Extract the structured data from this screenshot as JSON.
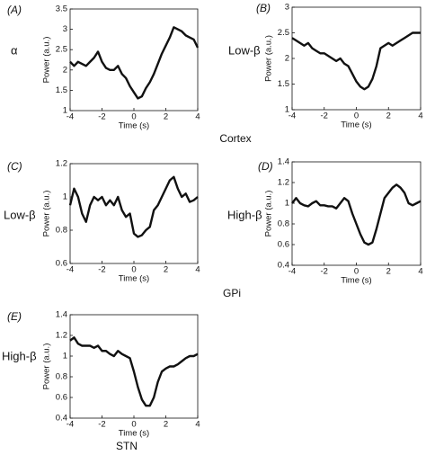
{
  "chart_data": [
    {
      "type": "line",
      "panel_label": "(A)",
      "band_label": "α",
      "x_label": "Time (s)",
      "y_label": "Power (a.u.)",
      "color": "#111111",
      "x": [
        -4,
        -3.75,
        -3.5,
        -3.25,
        -3,
        -2.75,
        -2.5,
        -2.25,
        -2,
        -1.75,
        -1.5,
        -1.25,
        -1,
        -0.75,
        -0.5,
        -0.25,
        0,
        0.25,
        0.5,
        0.75,
        1,
        1.25,
        1.5,
        1.75,
        2,
        2.25,
        2.5,
        2.75,
        3,
        3.25,
        3.5,
        3.75,
        4
      ],
      "values": [
        2.2,
        2.1,
        2.2,
        2.15,
        2.1,
        2.2,
        2.3,
        2.45,
        2.2,
        2.05,
        2.0,
        2.0,
        2.1,
        1.9,
        1.8,
        1.6,
        1.45,
        1.3,
        1.35,
        1.55,
        1.7,
        1.9,
        2.15,
        2.4,
        2.6,
        2.8,
        3.05,
        3.0,
        2.95,
        2.85,
        2.8,
        2.75,
        2.55
      ],
      "xlim": [
        -4,
        4
      ],
      "xticks": [
        -4,
        -2,
        0,
        2,
        4
      ],
      "ylim": [
        1,
        3.5
      ],
      "yticks": [
        1,
        1.5,
        2,
        2.5,
        3,
        3.5
      ]
    },
    {
      "type": "line",
      "panel_label": "(B)",
      "band_label": "Low-β",
      "x_label": "Time (s)",
      "y_label": "Power (a.u.)",
      "color": "#111111",
      "x": [
        -4,
        -3.75,
        -3.5,
        -3.25,
        -3,
        -2.75,
        -2.5,
        -2.25,
        -2,
        -1.75,
        -1.5,
        -1.25,
        -1,
        -0.75,
        -0.5,
        -0.25,
        0,
        0.25,
        0.5,
        0.75,
        1,
        1.25,
        1.5,
        1.75,
        2,
        2.25,
        2.5,
        2.75,
        3,
        3.25,
        3.5,
        3.75,
        4
      ],
      "values": [
        2.4,
        2.35,
        2.3,
        2.25,
        2.3,
        2.2,
        2.15,
        2.1,
        2.1,
        2.05,
        2.0,
        1.95,
        2.0,
        1.9,
        1.85,
        1.7,
        1.55,
        1.45,
        1.4,
        1.45,
        1.6,
        1.85,
        2.2,
        2.25,
        2.3,
        2.25,
        2.3,
        2.35,
        2.4,
        2.45,
        2.5,
        2.5,
        2.5
      ],
      "xlim": [
        -4,
        4
      ],
      "xticks": [
        -4,
        -2,
        0,
        2,
        4
      ],
      "ylim": [
        1,
        3
      ],
      "yticks": [
        1,
        1.5,
        2,
        2.5,
        3
      ]
    },
    {
      "type": "line",
      "panel_label": "(C)",
      "band_label": "Low-β",
      "x_label": "Time (s)",
      "y_label": "Power (a.u.)",
      "color": "#111111",
      "x": [
        -4,
        -3.75,
        -3.5,
        -3.25,
        -3,
        -2.75,
        -2.5,
        -2.25,
        -2,
        -1.75,
        -1.5,
        -1.25,
        -1,
        -0.75,
        -0.5,
        -0.25,
        0,
        0.25,
        0.5,
        0.75,
        1,
        1.25,
        1.5,
        1.75,
        2,
        2.25,
        2.5,
        2.75,
        3,
        3.25,
        3.5,
        3.75,
        4
      ],
      "values": [
        0.95,
        1.05,
        1.0,
        0.9,
        0.85,
        0.95,
        1.0,
        0.98,
        1.0,
        0.95,
        0.98,
        0.95,
        1.0,
        0.92,
        0.88,
        0.9,
        0.78,
        0.76,
        0.77,
        0.8,
        0.82,
        0.92,
        0.95,
        1.0,
        1.05,
        1.1,
        1.12,
        1.05,
        1.0,
        1.02,
        0.97,
        0.98,
        1.0
      ],
      "xlim": [
        -4,
        4
      ],
      "xticks": [
        -4,
        -2,
        0,
        2,
        4
      ],
      "ylim": [
        0.6,
        1.2
      ],
      "yticks": [
        0.6,
        0.8,
        1,
        1.2
      ]
    },
    {
      "type": "line",
      "panel_label": "(D)",
      "band_label": "High-β",
      "x_label": "Time (s)",
      "y_label": "Power (a.u.)",
      "color": "#111111",
      "x": [
        -4,
        -3.75,
        -3.5,
        -3.25,
        -3,
        -2.75,
        -2.5,
        -2.25,
        -2,
        -1.75,
        -1.5,
        -1.25,
        -1,
        -0.75,
        -0.5,
        -0.25,
        0,
        0.25,
        0.5,
        0.75,
        1,
        1.25,
        1.5,
        1.75,
        2,
        2.25,
        2.5,
        2.75,
        3,
        3.25,
        3.5,
        3.75,
        4
      ],
      "values": [
        1.0,
        1.05,
        1.0,
        0.98,
        0.97,
        1.0,
        1.02,
        0.98,
        0.98,
        0.97,
        0.97,
        0.95,
        1.0,
        1.05,
        1.02,
        0.9,
        0.8,
        0.7,
        0.62,
        0.6,
        0.62,
        0.75,
        0.9,
        1.05,
        1.1,
        1.15,
        1.18,
        1.15,
        1.1,
        1.0,
        0.98,
        1.0,
        1.02
      ],
      "xlim": [
        -4,
        4
      ],
      "xticks": [
        -4,
        -2,
        0,
        2,
        4
      ],
      "ylim": [
        0.4,
        1.4
      ],
      "yticks": [
        0.4,
        0.6,
        0.8,
        1,
        1.2,
        1.4
      ]
    },
    {
      "type": "line",
      "panel_label": "(E)",
      "band_label": "High-β",
      "x_label": "Time (s)",
      "y_label": "Power (a.u.)",
      "color": "#111111",
      "x": [
        -4,
        -3.75,
        -3.5,
        -3.25,
        -3,
        -2.75,
        -2.5,
        -2.25,
        -2,
        -1.75,
        -1.5,
        -1.25,
        -1,
        -0.75,
        -0.5,
        -0.25,
        0,
        0.25,
        0.5,
        0.75,
        1,
        1.25,
        1.5,
        1.75,
        2,
        2.25,
        2.5,
        2.75,
        3,
        3.25,
        3.5,
        3.75,
        4
      ],
      "values": [
        1.15,
        1.18,
        1.12,
        1.1,
        1.1,
        1.1,
        1.08,
        1.1,
        1.05,
        1.05,
        1.02,
        1.0,
        1.05,
        1.02,
        1.0,
        0.98,
        0.85,
        0.7,
        0.58,
        0.52,
        0.52,
        0.6,
        0.75,
        0.85,
        0.88,
        0.9,
        0.9,
        0.92,
        0.95,
        0.98,
        1.0,
        1.0,
        1.02
      ],
      "xlim": [
        -4,
        4
      ],
      "xticks": [
        -4,
        -2,
        0,
        2,
        4
      ],
      "ylim": [
        0.4,
        1.4
      ],
      "yticks": [
        0.4,
        0.6,
        0.8,
        1,
        1.2,
        1.4
      ]
    }
  ],
  "group_labels": [
    "Cortex",
    "GPi",
    "STN"
  ]
}
